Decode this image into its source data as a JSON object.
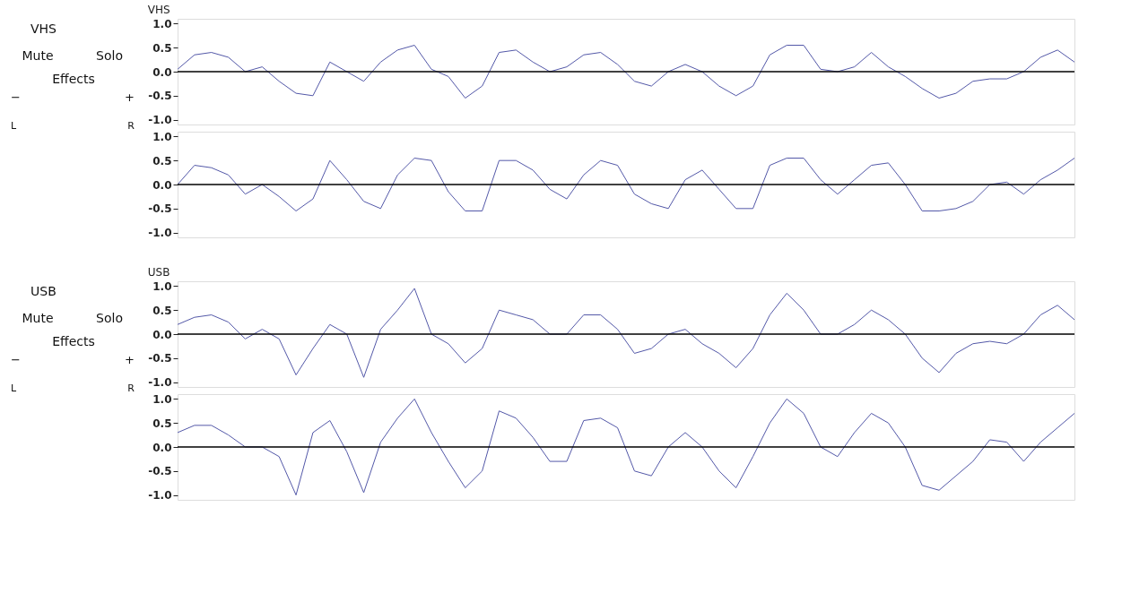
{
  "chart_data": [
    {
      "type": "other",
      "annotations": [
        "VHS",
        "Mute",
        "Solo",
        "Effects",
        "−",
        "+",
        "L",
        "R"
      ]
    },
    {
      "type": "line",
      "title": "VHS",
      "categories": [
        null,
        null,
        null,
        null,
        null,
        null,
        null,
        null,
        null,
        null,
        null,
        null,
        null,
        null,
        null,
        null,
        null,
        null,
        null,
        null,
        null,
        null,
        null,
        null,
        null,
        null,
        null,
        null,
        null,
        null,
        null,
        null,
        null,
        null,
        null,
        null,
        null,
        null,
        null,
        null,
        null,
        null,
        null,
        null,
        null,
        null,
        null,
        null,
        null,
        null,
        null,
        null,
        null,
        null
      ],
      "series": [
        {
          "color": "#5358a8",
          "values": [
            0.05,
            0.35,
            0.4,
            0.3,
            0.0,
            0.1,
            -0.2,
            -0.45,
            -0.5,
            0.2,
            0.0,
            -0.2,
            0.2,
            0.45,
            0.55,
            0.05,
            -0.1,
            -0.55,
            -0.3,
            0.4,
            0.45,
            0.2,
            0.0,
            0.1,
            0.35,
            0.4,
            0.15,
            -0.2,
            -0.3,
            0.0,
            0.15,
            0.0,
            -0.3,
            -0.5,
            -0.3,
            0.35,
            0.55,
            0.55,
            0.05,
            0.0,
            0.1,
            0.4,
            0.1,
            -0.1,
            -0.35,
            -0.55,
            -0.45,
            -0.2,
            -0.15,
            -0.15,
            0.0,
            0.3,
            0.45,
            0.2
          ]
        }
      ],
      "ylim": [
        -1.1,
        1.1
      ],
      "yticks": [
        {
          "value": 1,
          "label": "1.0"
        },
        {
          "value": 0.5,
          "label": "0.5"
        },
        {
          "value": 0,
          "label": "0.0"
        },
        {
          "value": -0.5,
          "label": "-0.5"
        },
        {
          "value": -1,
          "label": "-1.0"
        }
      ],
      "ref_lines": [
        {
          "axis": "y",
          "value": 0,
          "color": "#000000"
        }
      ],
      "tick_labels": "y",
      "grid": false
    },
    {
      "type": "line",
      "categories": [
        null,
        null,
        null,
        null,
        null,
        null,
        null,
        null,
        null,
        null,
        null,
        null,
        null,
        null,
        null,
        null,
        null,
        null,
        null,
        null,
        null,
        null,
        null,
        null,
        null,
        null,
        null,
        null,
        null,
        null,
        null,
        null,
        null,
        null,
        null,
        null,
        null,
        null,
        null,
        null,
        null,
        null,
        null,
        null,
        null,
        null,
        null,
        null,
        null,
        null,
        null,
        null,
        null,
        null
      ],
      "series": [
        {
          "color": "#5358a8",
          "values": [
            0.0,
            0.4,
            0.35,
            0.2,
            -0.2,
            0.0,
            -0.25,
            -0.55,
            -0.3,
            0.5,
            0.1,
            -0.35,
            -0.5,
            0.2,
            0.55,
            0.5,
            -0.15,
            -0.55,
            -0.55,
            0.5,
            0.5,
            0.3,
            -0.1,
            -0.3,
            0.2,
            0.5,
            0.4,
            -0.2,
            -0.4,
            -0.5,
            0.1,
            0.3,
            -0.1,
            -0.5,
            -0.5,
            0.4,
            0.55,
            0.55,
            0.1,
            -0.2,
            0.1,
            0.4,
            0.45,
            0.0,
            -0.55,
            -0.55,
            -0.5,
            -0.35,
            0.0,
            0.05,
            -0.2,
            0.1,
            0.3,
            0.55
          ]
        }
      ],
      "ylim": [
        -1.1,
        1.1
      ],
      "yticks": [
        {
          "value": 1,
          "label": "1.0"
        },
        {
          "value": 0.5,
          "label": "0.5"
        },
        {
          "value": 0,
          "label": "0.0"
        },
        {
          "value": -0.5,
          "label": "-0.5"
        },
        {
          "value": -1,
          "label": "-1.0"
        }
      ],
      "ref_lines": [
        {
          "axis": "y",
          "value": 0,
          "color": "#000000"
        }
      ],
      "tick_labels": "y",
      "grid": false
    },
    {
      "type": "other",
      "annotations": [
        "USB",
        "Mute",
        "Solo",
        "Effects",
        "−",
        "+",
        "L",
        "R"
      ]
    },
    {
      "type": "line",
      "title": "USB",
      "categories": [
        null,
        null,
        null,
        null,
        null,
        null,
        null,
        null,
        null,
        null,
        null,
        null,
        null,
        null,
        null,
        null,
        null,
        null,
        null,
        null,
        null,
        null,
        null,
        null,
        null,
        null,
        null,
        null,
        null,
        null,
        null,
        null,
        null,
        null,
        null,
        null,
        null,
        null,
        null,
        null,
        null,
        null,
        null,
        null,
        null,
        null,
        null,
        null,
        null,
        null,
        null,
        null,
        null,
        null
      ],
      "series": [
        {
          "color": "#5358a8",
          "values": [
            0.2,
            0.35,
            0.4,
            0.25,
            -0.1,
            0.1,
            -0.1,
            -0.85,
            -0.3,
            0.2,
            0.0,
            -0.9,
            0.1,
            0.5,
            0.95,
            0.0,
            -0.2,
            -0.6,
            -0.3,
            0.5,
            0.4,
            0.3,
            0.0,
            0.0,
            0.4,
            0.4,
            0.1,
            -0.4,
            -0.3,
            0.0,
            0.1,
            -0.2,
            -0.4,
            -0.7,
            -0.3,
            0.4,
            0.85,
            0.5,
            0.0,
            0.0,
            0.2,
            0.5,
            0.3,
            0.0,
            -0.5,
            -0.8,
            -0.4,
            -0.2,
            -0.15,
            -0.2,
            0.0,
            0.4,
            0.6,
            0.3
          ]
        }
      ],
      "ylim": [
        -1.1,
        1.1
      ],
      "yticks": [
        {
          "value": 1,
          "label": "1.0"
        },
        {
          "value": 0.5,
          "label": "0.5"
        },
        {
          "value": 0,
          "label": "0.0"
        },
        {
          "value": -0.5,
          "label": "-0.5"
        },
        {
          "value": -1,
          "label": "-1.0"
        }
      ],
      "ref_lines": [
        {
          "axis": "y",
          "value": 0,
          "color": "#000000"
        }
      ],
      "tick_labels": "y",
      "grid": false
    },
    {
      "type": "line",
      "categories": [
        null,
        null,
        null,
        null,
        null,
        null,
        null,
        null,
        null,
        null,
        null,
        null,
        null,
        null,
        null,
        null,
        null,
        null,
        null,
        null,
        null,
        null,
        null,
        null,
        null,
        null,
        null,
        null,
        null,
        null,
        null,
        null,
        null,
        null,
        null,
        null,
        null,
        null,
        null,
        null,
        null,
        null,
        null,
        null,
        null,
        null,
        null,
        null,
        null,
        null,
        null,
        null,
        null,
        null
      ],
      "series": [
        {
          "color": "#5358a8",
          "values": [
            0.3,
            0.45,
            0.45,
            0.25,
            0.0,
            0.0,
            -0.2,
            -1.0,
            0.3,
            0.55,
            -0.1,
            -0.95,
            0.1,
            0.6,
            1.0,
            0.3,
            -0.3,
            -0.85,
            -0.5,
            0.75,
            0.6,
            0.2,
            -0.3,
            -0.3,
            0.55,
            0.6,
            0.4,
            -0.5,
            -0.6,
            0.0,
            0.3,
            0.0,
            -0.5,
            -0.85,
            -0.2,
            0.5,
            1.0,
            0.7,
            0.0,
            -0.2,
            0.3,
            0.7,
            0.5,
            0.0,
            -0.8,
            -0.9,
            -0.6,
            -0.3,
            0.15,
            0.1,
            -0.3,
            0.1,
            0.4,
            0.7
          ]
        }
      ],
      "ylim": [
        -1.1,
        1.1
      ],
      "yticks": [
        {
          "value": 1,
          "label": "1.0"
        },
        {
          "value": 0.5,
          "label": "0.5"
        },
        {
          "value": 0,
          "label": "0.0"
        },
        {
          "value": -0.5,
          "label": "-0.5"
        },
        {
          "value": -1,
          "label": "-1.0"
        }
      ],
      "ref_lines": [
        {
          "axis": "y",
          "value": 0,
          "color": "#000000"
        }
      ],
      "tick_labels": "y",
      "grid": false
    }
  ]
}
